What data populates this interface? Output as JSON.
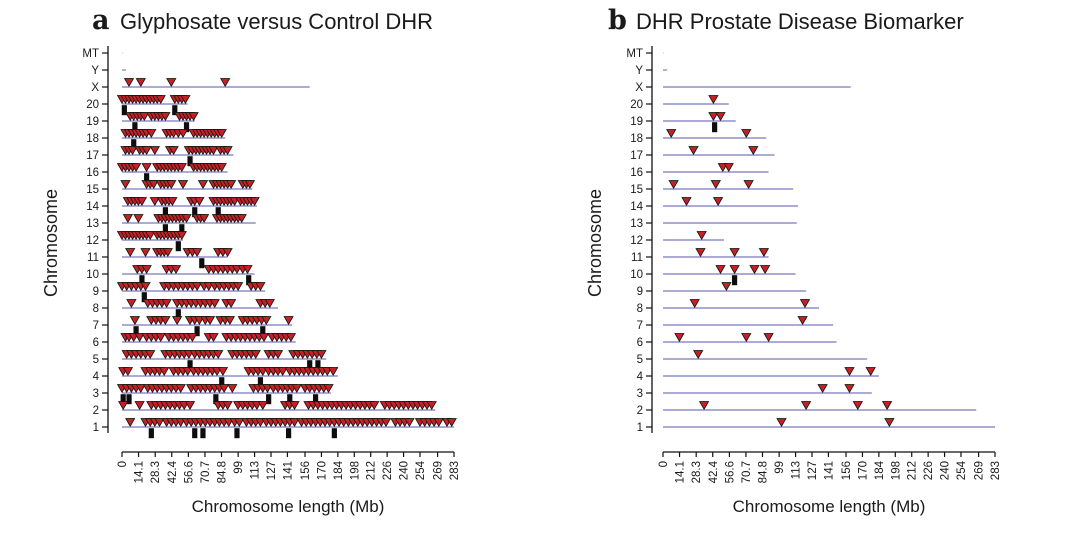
{
  "colors": {
    "marker_fill": "#c62026",
    "marker_edge": "#1f1512",
    "chromosome_line": "#8d90c8",
    "block": "#0d0d0d",
    "axis": "#111111",
    "text": "#1a1a1a",
    "background": "#ffffff"
  },
  "chart_data": [
    {
      "type": "scatter",
      "panel_label": "a",
      "title": "Glyphosate versus Control DHR",
      "xlabel": "Chromosome length (Mb)",
      "ylabel": "Chromosome",
      "xlim": [
        0,
        283
      ],
      "x_ticks": [
        0,
        14.1,
        28.3,
        42.4,
        56.6,
        70.7,
        84.8,
        99,
        113,
        127,
        141,
        156,
        170,
        184,
        198,
        212,
        226,
        240,
        254,
        269,
        283
      ],
      "y_categories": [
        "MT",
        "Y",
        "X",
        "20",
        "19",
        "18",
        "17",
        "16",
        "15",
        "14",
        "13",
        "12",
        "11",
        "10",
        "9",
        "8",
        "7",
        "6",
        "5",
        "4",
        "3",
        "2",
        "1"
      ],
      "marker_shape": "triangle-down",
      "grid": false,
      "legend": "none",
      "series": [
        {
          "chr": "MT",
          "length_mb": 0.3,
          "markers_mb": [],
          "blocks_mb": []
        },
        {
          "chr": "Y",
          "length_mb": 3.5,
          "markers_mb": [],
          "blocks_mb": []
        },
        {
          "chr": "X",
          "length_mb": 160,
          "markers_mb": [
            6,
            16,
            42,
            88
          ],
          "blocks_mb": []
        },
        {
          "chr": "20",
          "length_mb": 56,
          "markers_mb": [
            0,
            3,
            6,
            9,
            12,
            15,
            18,
            21,
            24,
            27,
            30,
            33,
            45,
            48,
            51,
            54
          ],
          "blocks_mb": [
            2,
            45
          ]
        },
        {
          "chr": "19",
          "length_mb": 62,
          "markers_mb": [
            7,
            10,
            13,
            16,
            19,
            25,
            28,
            31,
            34,
            37,
            49,
            52,
            55,
            58,
            61
          ],
          "blocks_mb": [
            11,
            55
          ]
        },
        {
          "chr": "18",
          "length_mb": 88,
          "markers_mb": [
            3,
            6,
            9,
            12,
            15,
            18,
            21,
            25,
            38,
            41,
            44,
            48,
            52,
            61,
            64,
            67,
            70,
            73,
            76,
            79,
            82,
            85
          ],
          "blocks_mb": [
            10
          ]
        },
        {
          "chr": "17",
          "length_mb": 95,
          "markers_mb": [
            3,
            6,
            9,
            15,
            18,
            21,
            28,
            41,
            44,
            57,
            60,
            63,
            66,
            69,
            72,
            75,
            78,
            84,
            87,
            90
          ],
          "blocks_mb": [
            58
          ]
        },
        {
          "chr": "16",
          "length_mb": 90,
          "markers_mb": [
            0,
            3,
            6,
            9,
            12,
            21,
            30,
            33,
            36,
            39,
            42,
            45,
            48,
            51,
            61,
            64,
            67,
            70,
            73,
            76,
            79,
            82,
            85
          ],
          "blocks_mb": [
            21
          ]
        },
        {
          "chr": "15",
          "length_mb": 111,
          "markers_mb": [
            3,
            21,
            24,
            27,
            33,
            36,
            39,
            42,
            52,
            69,
            78,
            81,
            84,
            87,
            90,
            93,
            103,
            106,
            109
          ],
          "blocks_mb": []
        },
        {
          "chr": "14",
          "length_mb": 115,
          "markers_mb": [
            5,
            8,
            11,
            14,
            17,
            28,
            34,
            37,
            40,
            43,
            59,
            62,
            66,
            78,
            81,
            84,
            87,
            90,
            93,
            96,
            101,
            104,
            107,
            110,
            113
          ],
          "blocks_mb": [
            37,
            62,
            82
          ]
        },
        {
          "chr": "13",
          "length_mb": 114,
          "markers_mb": [
            5,
            14,
            31,
            34,
            37,
            40,
            43,
            46,
            49,
            52,
            55,
            64,
            67,
            70,
            81,
            84,
            87,
            90,
            93,
            96,
            99,
            102
          ],
          "blocks_mb": [
            37,
            51
          ]
        },
        {
          "chr": "12",
          "length_mb": 52,
          "markers_mb": [
            0,
            3,
            6,
            9,
            12,
            15,
            18,
            21,
            24,
            30,
            33,
            36,
            39,
            42,
            45,
            48,
            51
          ],
          "blocks_mb": [
            48
          ]
        },
        {
          "chr": "11",
          "length_mb": 90,
          "markers_mb": [
            7,
            20,
            30,
            33,
            36,
            39,
            56,
            60,
            64,
            82,
            86,
            90
          ],
          "blocks_mb": [
            68
          ]
        },
        {
          "chr": "10",
          "length_mb": 113,
          "markers_mb": [
            13,
            17,
            21,
            38,
            42,
            46,
            74,
            78,
            82,
            86,
            90,
            94,
            98,
            103,
            107
          ],
          "blocks_mb": [
            17,
            108
          ]
        },
        {
          "chr": "9",
          "length_mb": 122,
          "markers_mb": [
            0,
            4,
            8,
            12,
            16,
            20,
            36,
            40,
            44,
            48,
            52,
            56,
            60,
            64,
            70,
            74,
            79,
            83,
            87,
            91,
            95,
            99,
            110,
            114,
            118
          ],
          "blocks_mb": [
            19
          ]
        },
        {
          "chr": "8",
          "length_mb": 133,
          "markers_mb": [
            8,
            22,
            26,
            30,
            34,
            38,
            47,
            51,
            55,
            59,
            63,
            67,
            71,
            75,
            79,
            89,
            93,
            118,
            122,
            126
          ],
          "blocks_mb": [
            48
          ]
        },
        {
          "chr": "7",
          "length_mb": 145,
          "markers_mb": [
            11,
            25,
            29,
            33,
            37,
            47,
            58,
            62,
            66,
            71,
            75,
            84,
            88,
            92,
            103,
            107,
            111,
            115,
            119,
            123,
            142
          ],
          "blocks_mb": [
            12,
            64,
            120
          ]
        },
        {
          "chr": "6",
          "length_mb": 148,
          "markers_mb": [
            3,
            6,
            10,
            15,
            21,
            25,
            29,
            33,
            40,
            44,
            48,
            52,
            56,
            60,
            74,
            78,
            89,
            93,
            97,
            101,
            105,
            109,
            113,
            117,
            121,
            128,
            132,
            136,
            140,
            144
          ],
          "blocks_mb": []
        },
        {
          "chr": "5",
          "length_mb": 174,
          "markers_mb": [
            4,
            8,
            12,
            16,
            20,
            24,
            37,
            41,
            45,
            49,
            53,
            57,
            62,
            66,
            70,
            74,
            78,
            82,
            94,
            98,
            102,
            106,
            110,
            114,
            125,
            129,
            133,
            146,
            150,
            154,
            158,
            162,
            166,
            170
          ],
          "blocks_mb": [
            58,
            160,
            167
          ]
        },
        {
          "chr": "4",
          "length_mb": 184,
          "markers_mb": [
            1,
            5,
            20,
            24,
            28,
            32,
            36,
            44,
            48,
            52,
            56,
            61,
            65,
            69,
            73,
            77,
            81,
            86,
            108,
            112,
            116,
            120,
            125,
            129,
            133,
            137,
            143,
            147,
            151,
            155,
            159,
            163,
            167,
            171,
            175,
            180
          ],
          "blocks_mb": [
            85,
            118
          ]
        },
        {
          "chr": "3",
          "length_mb": 178,
          "markers_mb": [
            0,
            4,
            8,
            12,
            16,
            22,
            26,
            30,
            34,
            38,
            42,
            46,
            50,
            59,
            63,
            67,
            71,
            75,
            79,
            83,
            87,
            94,
            112,
            116,
            120,
            124,
            129,
            133,
            137,
            141,
            145,
            149,
            156,
            160,
            164,
            168,
            172,
            176
          ],
          "blocks_mb": [
            1,
            6,
            80,
            125,
            143,
            165
          ]
        },
        {
          "chr": "2",
          "length_mb": 267,
          "markers_mb": [
            1,
            15,
            25,
            29,
            33,
            37,
            41,
            45,
            49,
            53,
            58,
            82,
            86,
            90,
            99,
            103,
            107,
            111,
            115,
            120,
            139,
            143,
            147,
            159,
            163,
            167,
            171,
            175,
            179,
            183,
            187,
            191,
            195,
            199,
            203,
            207,
            211,
            215,
            224,
            228,
            232,
            236,
            240,
            244,
            248,
            252,
            256,
            260,
            264
          ],
          "blocks_mb": []
        },
        {
          "chr": "1",
          "length_mb": 283,
          "markers_mb": [
            7,
            20,
            24,
            28,
            32,
            38,
            42,
            46,
            50,
            55,
            59,
            63,
            67,
            71,
            75,
            79,
            83,
            87,
            91,
            96,
            100,
            106,
            110,
            114,
            118,
            123,
            127,
            131,
            135,
            139,
            143,
            147,
            153,
            157,
            161,
            165,
            169,
            173,
            177,
            181,
            185,
            189,
            193,
            197,
            201,
            205,
            209,
            213,
            217,
            221,
            225,
            233,
            237,
            241,
            245,
            254,
            258,
            262,
            266,
            270,
            277,
            281
          ],
          "blocks_mb": [
            25,
            62,
            69,
            98,
            142,
            181
          ]
        }
      ]
    },
    {
      "type": "scatter",
      "panel_label": "b",
      "title": "DHR Prostate Disease Biomarker",
      "xlabel": "Chromosome length (Mb)",
      "ylabel": "Chromosome",
      "xlim": [
        0,
        283
      ],
      "x_ticks": [
        0,
        14.1,
        28.3,
        42.4,
        56.6,
        70.7,
        84.8,
        99,
        113,
        127,
        141,
        156,
        170,
        184,
        198,
        212,
        226,
        240,
        254,
        269,
        283
      ],
      "y_categories": [
        "MT",
        "Y",
        "X",
        "20",
        "19",
        "18",
        "17",
        "16",
        "15",
        "14",
        "13",
        "12",
        "11",
        "10",
        "9",
        "8",
        "7",
        "6",
        "5",
        "4",
        "3",
        "2",
        "1"
      ],
      "marker_shape": "triangle-down",
      "grid": false,
      "legend": "none",
      "series": [
        {
          "chr": "MT",
          "length_mb": 0.3,
          "markers_mb": [],
          "blocks_mb": []
        },
        {
          "chr": "Y",
          "length_mb": 3.5,
          "markers_mb": [],
          "blocks_mb": []
        },
        {
          "chr": "X",
          "length_mb": 160,
          "markers_mb": [],
          "blocks_mb": []
        },
        {
          "chr": "20",
          "length_mb": 56,
          "markers_mb": [
            43
          ],
          "blocks_mb": []
        },
        {
          "chr": "19",
          "length_mb": 62,
          "markers_mb": [
            43,
            49
          ],
          "blocks_mb": [
            44
          ]
        },
        {
          "chr": "18",
          "length_mb": 88,
          "markers_mb": [
            7,
            71
          ],
          "blocks_mb": []
        },
        {
          "chr": "17",
          "length_mb": 95,
          "markers_mb": [
            26,
            77
          ],
          "blocks_mb": []
        },
        {
          "chr": "16",
          "length_mb": 90,
          "markers_mb": [
            51,
            56
          ],
          "blocks_mb": []
        },
        {
          "chr": "15",
          "length_mb": 111,
          "markers_mb": [
            9,
            45,
            73
          ],
          "blocks_mb": []
        },
        {
          "chr": "14",
          "length_mb": 115,
          "markers_mb": [
            20,
            47
          ],
          "blocks_mb": []
        },
        {
          "chr": "13",
          "length_mb": 114,
          "markers_mb": [],
          "blocks_mb": []
        },
        {
          "chr": "12",
          "length_mb": 52,
          "markers_mb": [
            33
          ],
          "blocks_mb": []
        },
        {
          "chr": "11",
          "length_mb": 90,
          "markers_mb": [
            32,
            61,
            86
          ],
          "blocks_mb": []
        },
        {
          "chr": "10",
          "length_mb": 113,
          "markers_mb": [
            49,
            61,
            78,
            87
          ],
          "blocks_mb": [
            61
          ]
        },
        {
          "chr": "9",
          "length_mb": 122,
          "markers_mb": [
            54
          ],
          "blocks_mb": []
        },
        {
          "chr": "8",
          "length_mb": 133,
          "markers_mb": [
            27,
            121
          ],
          "blocks_mb": []
        },
        {
          "chr": "7",
          "length_mb": 145,
          "markers_mb": [
            119
          ],
          "blocks_mb": []
        },
        {
          "chr": "6",
          "length_mb": 148,
          "markers_mb": [
            14,
            71,
            90
          ],
          "blocks_mb": []
        },
        {
          "chr": "5",
          "length_mb": 174,
          "markers_mb": [
            30
          ],
          "blocks_mb": []
        },
        {
          "chr": "4",
          "length_mb": 184,
          "markers_mb": [
            159,
            177
          ],
          "blocks_mb": []
        },
        {
          "chr": "3",
          "length_mb": 178,
          "markers_mb": [
            136,
            159
          ],
          "blocks_mb": []
        },
        {
          "chr": "2",
          "length_mb": 267,
          "markers_mb": [
            35,
            122,
            166,
            191
          ],
          "blocks_mb": []
        },
        {
          "chr": "1",
          "length_mb": 283,
          "markers_mb": [
            101,
            193
          ],
          "blocks_mb": []
        }
      ]
    }
  ]
}
